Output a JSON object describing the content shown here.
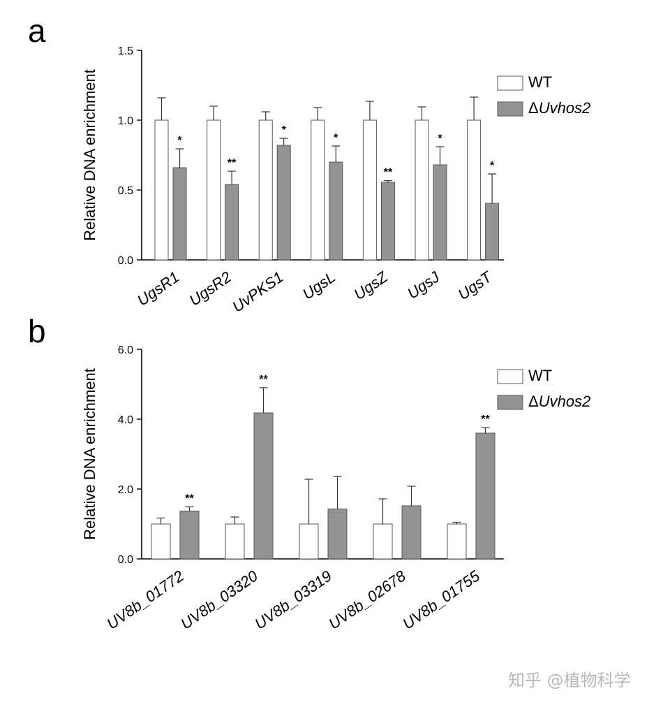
{
  "watermark": "知乎 @植物科学",
  "chart_data": [
    {
      "panel": "a",
      "type": "bar",
      "ylabel": "Relative DNA enrichment",
      "ylim": [
        0,
        1.5
      ],
      "yticks": [
        "0.0",
        "0.5",
        "1.0",
        "1.5"
      ],
      "ytick_values": [
        0,
        0.5,
        1.0,
        1.5
      ],
      "categories": [
        "UgsR1",
        "UgsR2",
        "UvPKS1",
        "UgsL",
        "UgsZ",
        "UgsJ",
        "UgsT"
      ],
      "series": [
        {
          "name": "WT",
          "color": "#ffffff",
          "values": [
            1.0,
            1.0,
            1.0,
            1.0,
            1.0,
            1.0,
            1.0
          ],
          "errors": [
            0.16,
            0.1,
            0.06,
            0.09,
            0.135,
            0.095,
            0.165
          ]
        },
        {
          "name": "ΔUvhos2",
          "color": "#939393",
          "values": [
            0.66,
            0.54,
            0.82,
            0.7,
            0.555,
            0.68,
            0.405
          ],
          "errors": [
            0.135,
            0.095,
            0.05,
            0.115,
            0.012,
            0.13,
            0.21
          ]
        }
      ],
      "significance": [
        "*",
        "**",
        "*",
        "*",
        "**",
        "*",
        "*"
      ],
      "legend": {
        "wt": "WT",
        "delta": "Δ",
        "mutant": "Uvhos2",
        "position": "top-right"
      }
    },
    {
      "panel": "b",
      "type": "bar",
      "ylabel": "Relative DNA enrichment",
      "ylim": [
        0,
        6.0
      ],
      "yticks": [
        "0.0",
        "2.0",
        "4.0",
        "6.0"
      ],
      "ytick_values": [
        0,
        2.0,
        4.0,
        6.0
      ],
      "categories": [
        "UV8b_01772",
        "UV8b_03320",
        "UV8b_03319",
        "UV8b_02678",
        "UV8b_01755"
      ],
      "series": [
        {
          "name": "WT",
          "color": "#ffffff",
          "values": [
            1.0,
            1.0,
            1.0,
            1.0,
            1.0
          ],
          "errors": [
            0.17,
            0.2,
            1.28,
            0.72,
            0.05
          ]
        },
        {
          "name": "ΔUvhos2",
          "color": "#939393",
          "values": [
            1.37,
            4.18,
            1.43,
            1.52,
            3.6
          ],
          "errors": [
            0.12,
            0.72,
            0.93,
            0.56,
            0.16
          ]
        }
      ],
      "significance": [
        "**",
        "**",
        "",
        "",
        "**"
      ],
      "legend": {
        "wt": "WT",
        "delta": "Δ",
        "mutant": "Uvhos2",
        "position": "top-right"
      }
    }
  ]
}
